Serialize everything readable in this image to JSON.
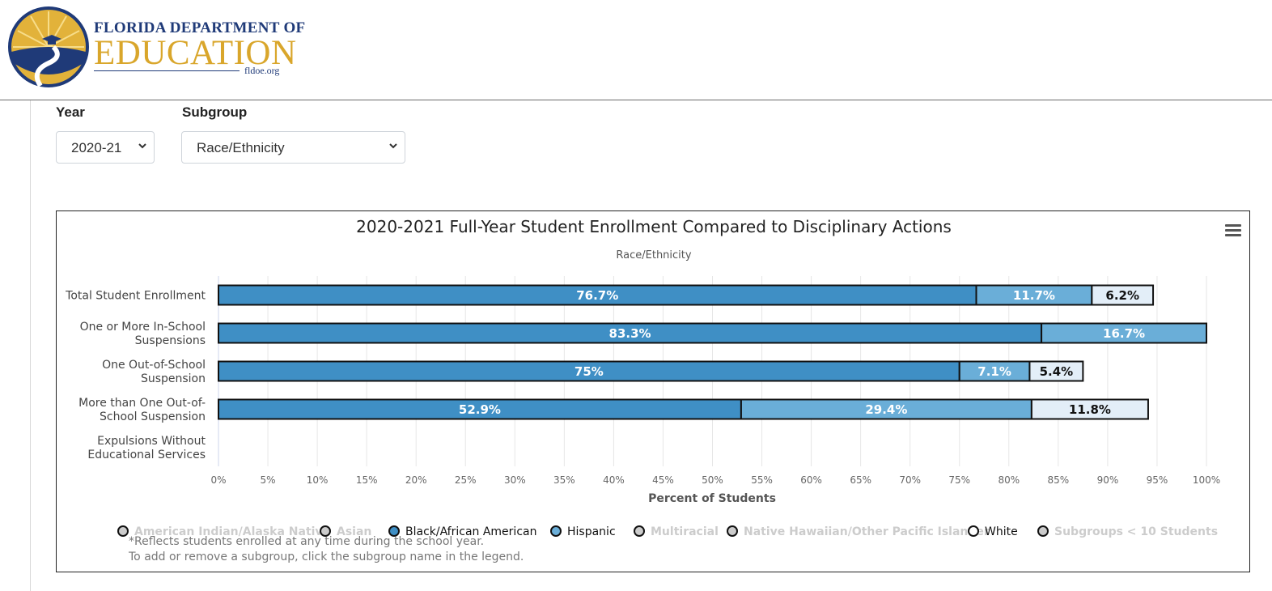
{
  "header": {
    "logo_line1": "FLORIDA DEPARTMENT OF",
    "logo_line2": "EDUCATION",
    "logo_url": "fldoe.org"
  },
  "filters": {
    "year_label": "Year",
    "year_value": "2020-21",
    "subgroup_label": "Subgroup",
    "subgroup_value": "Race/Ethnicity"
  },
  "notes": {
    "line1": "*Reflects students enrolled at any time during the school year.",
    "line2": "To add or remove a subgroup, click the subgroup name in the legend."
  },
  "colors": {
    "black": "#3f8fc5",
    "hispanic": "#6aaed8",
    "white": "#e3eef8",
    "disabled": "#cccccc"
  },
  "chart_data": {
    "type": "bar",
    "orientation": "horizontal",
    "stacked": true,
    "title": "2020-2021 Full-Year Student Enrollment Compared to Disciplinary Actions",
    "subtitle": "Race/Ethnicity",
    "xlabel": "Percent of Students",
    "xlim": [
      0,
      100
    ],
    "xticks": [
      "0%",
      "5%",
      "10%",
      "15%",
      "20%",
      "25%",
      "30%",
      "35%",
      "40%",
      "45%",
      "50%",
      "55%",
      "60%",
      "65%",
      "70%",
      "75%",
      "80%",
      "85%",
      "90%",
      "95%",
      "100%"
    ],
    "grid": true,
    "legend_position": "bottom",
    "categories": [
      [
        "Total Student Enrollment"
      ],
      [
        "One or More In-School",
        "Suspensions"
      ],
      [
        "One Out-of-School",
        "Suspension"
      ],
      [
        "More than One Out-of-",
        "School Suspension"
      ],
      [
        "Expulsions Without",
        "Educational Services"
      ]
    ],
    "series": [
      {
        "name": "Black/African American",
        "values": [
          76.7,
          83.3,
          75,
          52.9,
          null
        ],
        "labels": [
          "76.7%",
          "83.3%",
          "75%",
          "52.9%",
          ""
        ]
      },
      {
        "name": "Hispanic",
        "values": [
          11.7,
          16.7,
          7.1,
          29.4,
          null
        ],
        "labels": [
          "11.7%",
          "16.7%",
          "7.1%",
          "29.4%",
          ""
        ]
      },
      {
        "name": "White",
        "values": [
          6.2,
          null,
          5.4,
          11.8,
          null
        ],
        "labels": [
          "6.2%",
          "",
          "5.4%",
          "11.8%",
          ""
        ]
      }
    ],
    "legend": [
      {
        "name": "American Indian/Alaska Native",
        "active": false
      },
      {
        "name": "Asian",
        "active": false
      },
      {
        "name": "Black/African American",
        "active": true
      },
      {
        "name": "Hispanic",
        "active": true
      },
      {
        "name": "Multiracial",
        "active": false
      },
      {
        "name": "Native Hawaiian/Other Pacific Islander",
        "active": false
      },
      {
        "name": "White",
        "active": true
      },
      {
        "name": "Subgroups < 10 Students",
        "active": false
      }
    ]
  }
}
